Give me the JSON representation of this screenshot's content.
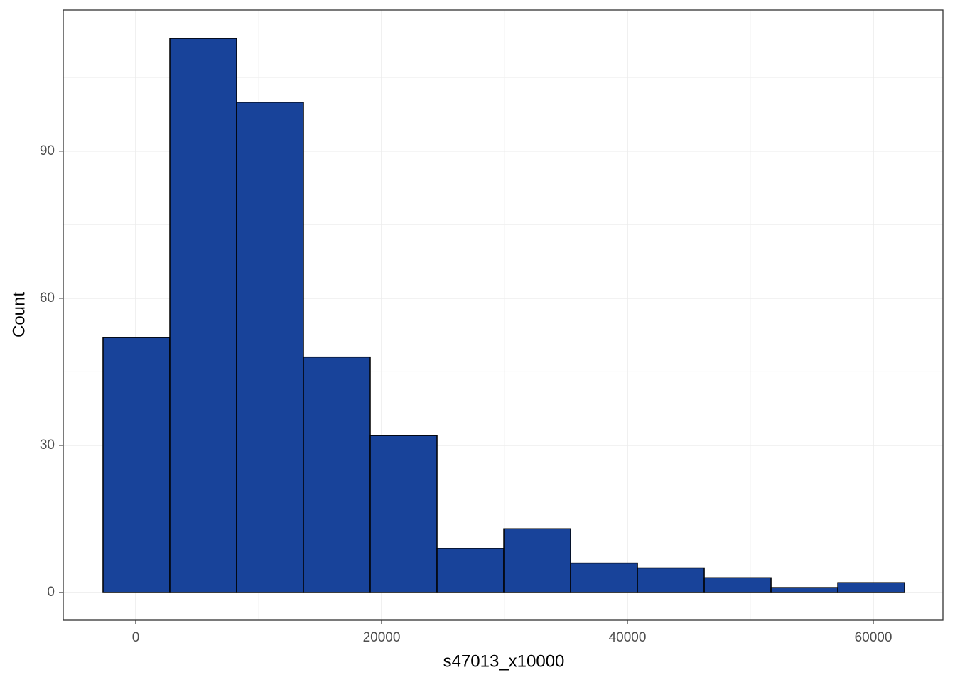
{
  "chart_data": {
    "type": "histogram",
    "x_label": "s47013_x10000",
    "y_label": "Count",
    "bins": [
      -2660,
      2774,
      8208,
      13642,
      19076,
      24510,
      29944,
      35378,
      40812,
      46246,
      51680,
      57114,
      62548
    ],
    "counts": [
      52,
      113,
      100,
      48,
      32,
      9,
      13,
      6,
      5,
      3,
      1,
      2
    ],
    "color": "#18439a",
    "edge_color": "#000000",
    "xlim": [
      -5896,
      65665
    ],
    "xticks": [
      0,
      20000,
      40000,
      60000
    ],
    "ylim": [
      -5.65,
      118.8
    ],
    "yticks": [
      0,
      30,
      60,
      90
    ],
    "grid": true
  }
}
